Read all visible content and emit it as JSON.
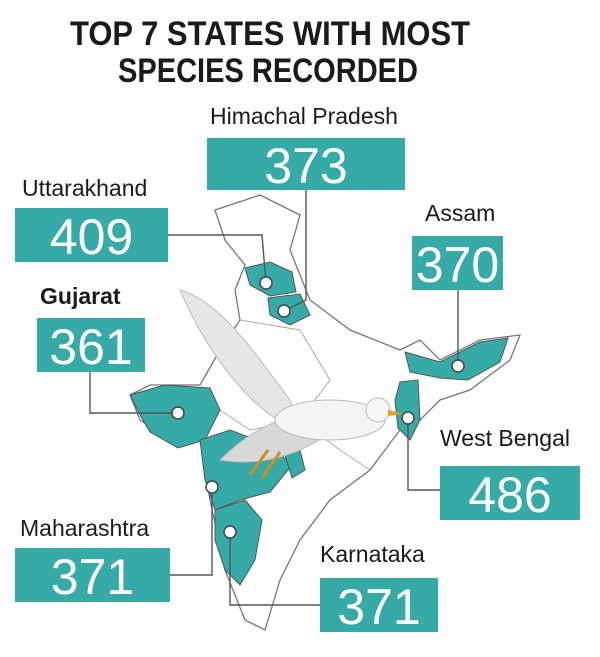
{
  "header": {
    "title_lines": [
      "TOP 7 STATES WITH MOST",
      "SPECIES RECORDED"
    ]
  },
  "states": [
    {
      "name": "Himachal Pradesh",
      "value": 373
    },
    {
      "name": "Uttarakhand",
      "value": 409
    },
    {
      "name": "Assam",
      "value": 370
    },
    {
      "name": "Gujarat",
      "value": 361
    },
    {
      "name": "West Bengal",
      "value": 486
    },
    {
      "name": "Maharashtra",
      "value": 371
    },
    {
      "name": "Karnataka",
      "value": 371
    }
  ]
}
